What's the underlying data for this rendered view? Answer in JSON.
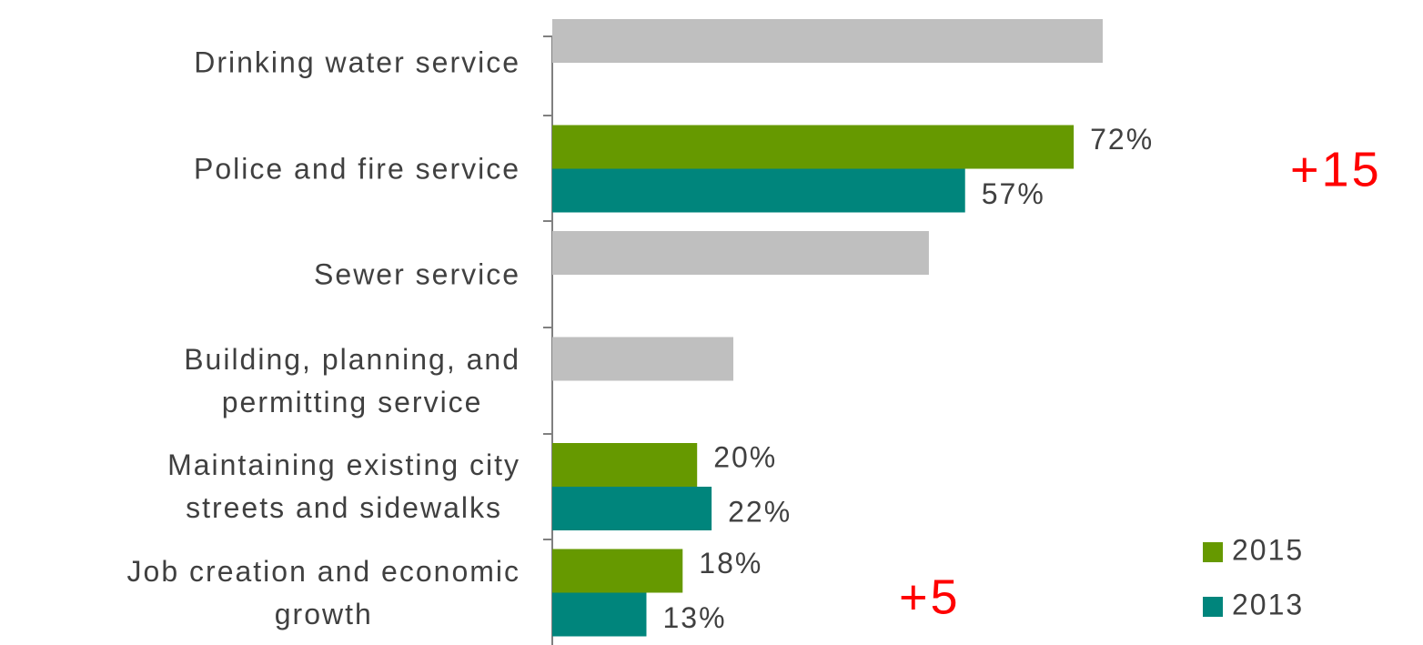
{
  "chart_data": {
    "type": "bar",
    "orientation": "horizontal",
    "categories": [
      "Drinking water service",
      "Police and fire service",
      "Sewer service",
      "Building, planning, and\npermitting service",
      "Maintaining existing city\nstreets and sidewalks",
      "Job creation and economic\ngrowth"
    ],
    "series": [
      {
        "name": "2015",
        "color": "#669900",
        "point_colors": [
          "#bfbfbf",
          "#669900",
          "#bfbfbf",
          "#bfbfbf",
          "#669900",
          "#669900"
        ],
        "values": [
          76,
          72,
          52,
          25,
          20,
          18
        ],
        "value_labels": [
          null,
          "72%",
          null,
          null,
          "20%",
          "18%"
        ]
      },
      {
        "name": "2013",
        "color": "#00857c",
        "values": [
          null,
          57,
          null,
          null,
          22,
          13
        ],
        "value_labels": [
          null,
          "57%",
          null,
          null,
          "22%",
          "13%"
        ]
      }
    ],
    "xlim": [
      0,
      100
    ],
    "annotations": [
      {
        "text": "+15",
        "color": "#ff0000"
      },
      {
        "text": "+5",
        "color": "#ff0000"
      }
    ],
    "legend": "bottom-right"
  }
}
